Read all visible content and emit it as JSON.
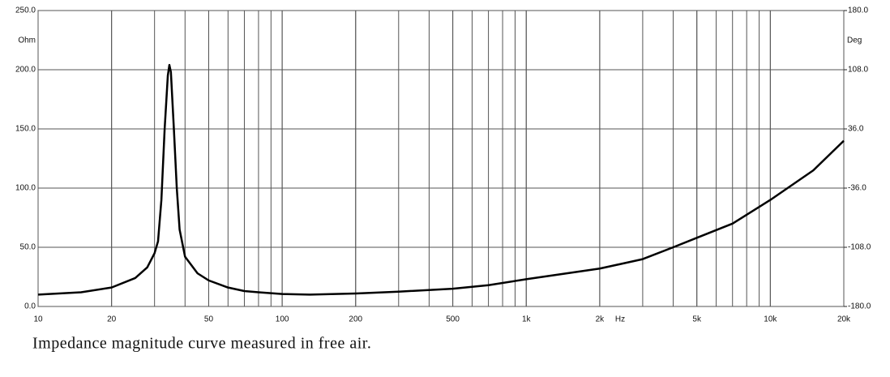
{
  "chart_data": {
    "type": "line",
    "caption": "Impedance magnitude curve measured in free air.",
    "y_unit": "Ohm",
    "y2_unit": "Deg",
    "x_unit": "Hz",
    "x": [
      10,
      15,
      20,
      25,
      28,
      30,
      31,
      32,
      33,
      34,
      34.5,
      35,
      36,
      37,
      38,
      40,
      45,
      50,
      60,
      70,
      80,
      100,
      130,
      200,
      300,
      500,
      700,
      1000,
      2000,
      3000,
      4000,
      5000,
      7000,
      10000,
      15000,
      20000
    ],
    "values": [
      10,
      12,
      16,
      24,
      33,
      45,
      55,
      90,
      150,
      195,
      204,
      198,
      150,
      100,
      65,
      42,
      28,
      22,
      16,
      13,
      12,
      10.5,
      10,
      11,
      12.5,
      15,
      18,
      23,
      32,
      40,
      50,
      58,
      70,
      90,
      115,
      140
    ],
    "color": "#000000",
    "x_log": true,
    "grid": true,
    "xlim": [
      10,
      20000
    ],
    "xticks": [
      10,
      20,
      50,
      100,
      200,
      500,
      {
        "value": 1000,
        "label": "1k"
      },
      {
        "value": 2000,
        "label": "2k"
      },
      {
        "value": 5000,
        "label": "5k"
      },
      {
        "value": 10000,
        "label": "10k"
      },
      {
        "value": 20000,
        "label": "20k"
      }
    ],
    "ylim": [
      0,
      250
    ],
    "yticks": [
      {
        "value": 0,
        "label": "0.0"
      },
      {
        "value": 50,
        "label": "50.0"
      },
      {
        "value": 100,
        "label": "100.0"
      },
      {
        "value": 150,
        "label": "150.0"
      },
      {
        "value": 200,
        "label": "200.0"
      },
      {
        "value": 250,
        "label": "250.0"
      }
    ],
    "y2lim": [
      -180,
      180
    ],
    "y2ticks": [
      {
        "value": -180,
        "label": "-180.0"
      },
      {
        "value": -108,
        "label": "-108.0"
      },
      {
        "value": -36,
        "label": "-36.0"
      },
      {
        "value": 36,
        "label": "36.0"
      },
      {
        "value": 108,
        "label": "108.0"
      },
      {
        "value": 180,
        "label": "180.0"
      }
    ]
  }
}
